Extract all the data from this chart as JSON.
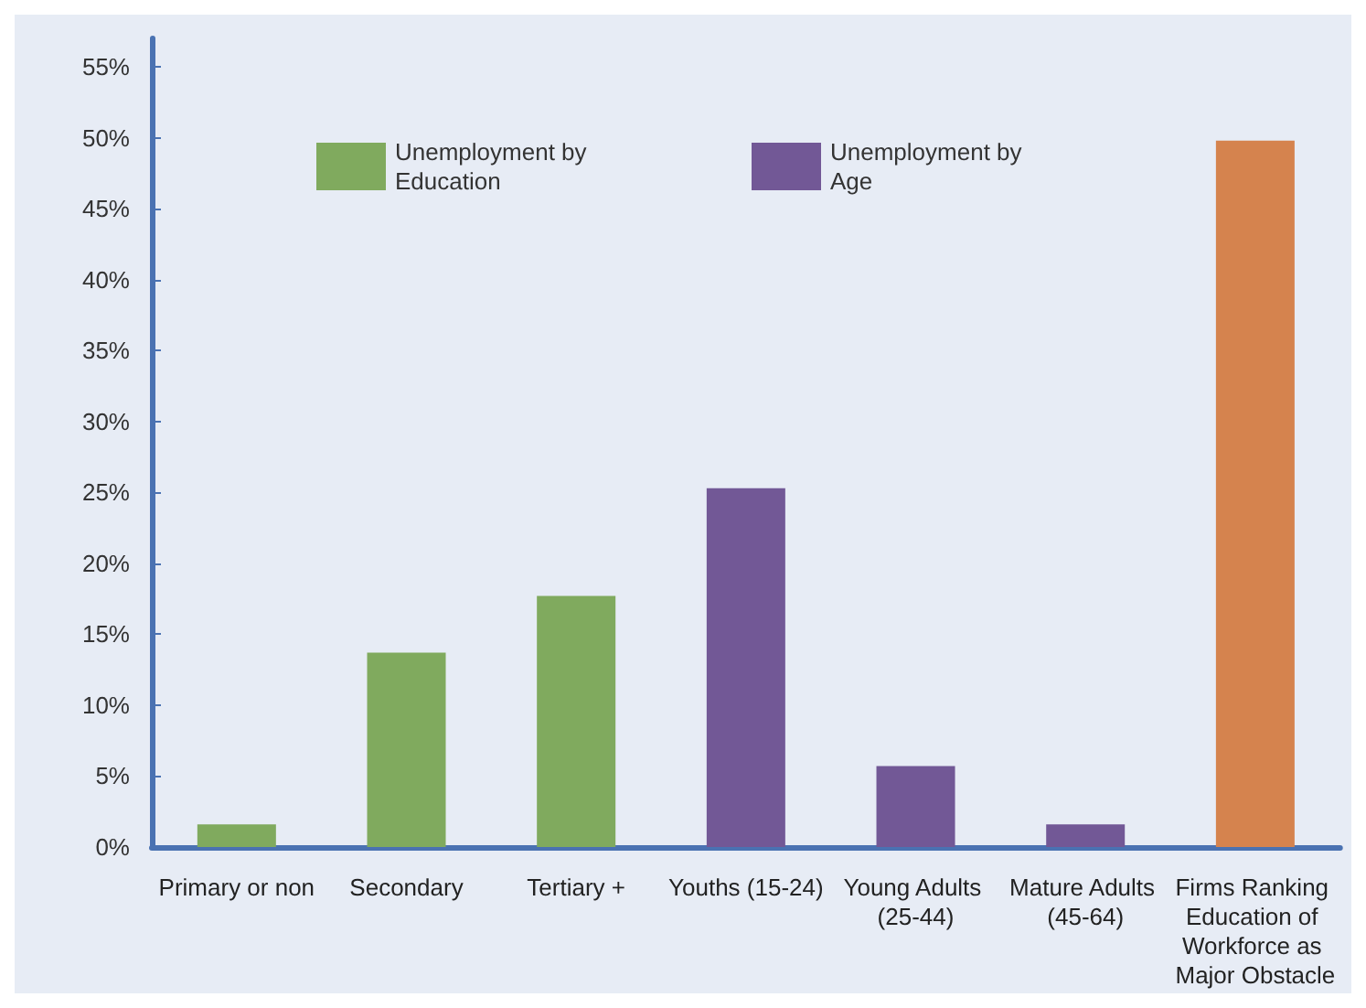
{
  "chart_data": {
    "type": "bar",
    "categories": [
      "Primary or non",
      "Secondary",
      "Tertiary +",
      "Youths (15-24)",
      "Young Adults (25-44)",
      "Mature Adults (45-64)",
      "Firms Ranking Education of Workforce as Major Obstacle"
    ],
    "series": [
      {
        "name": "Unemployment by Education",
        "color": "#80aa5e",
        "values": [
          1.6,
          13.7,
          17.7,
          null,
          null,
          null,
          null
        ]
      },
      {
        "name": "Unemployment by Age",
        "color": "#725896",
        "values": [
          null,
          null,
          null,
          25.3,
          5.7,
          1.6,
          null
        ]
      },
      {
        "color": "#d5834e",
        "values": [
          null,
          null,
          null,
          null,
          null,
          null,
          49.8
        ]
      }
    ],
    "ylim": [
      0,
      57
    ],
    "yticks": [
      {
        "value": 0,
        "label": "0%"
      },
      {
        "value": 5,
        "label": "5%"
      },
      {
        "value": 10,
        "label": "10%"
      },
      {
        "value": 15,
        "label": "15%"
      },
      {
        "value": 20,
        "label": "20%"
      },
      {
        "value": 25,
        "label": "25%"
      },
      {
        "value": 30,
        "label": "30%"
      },
      {
        "value": 35,
        "label": "35%"
      },
      {
        "value": 40,
        "label": "40%"
      },
      {
        "value": 45,
        "label": "45%"
      },
      {
        "value": 50,
        "label": "50%"
      },
      {
        "value": 55,
        "label": "55%"
      }
    ],
    "grid": false,
    "legend": "top"
  }
}
